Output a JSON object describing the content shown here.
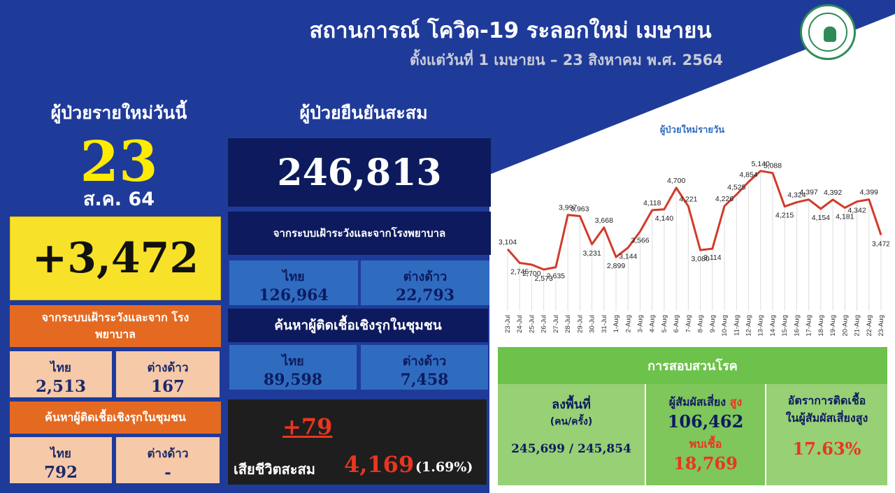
{
  "header": {
    "title": "สถานการณ์ โควิด-19 ระลอกใหม่ เมษายน",
    "subtitle": "ตั้งแต่วันที่ 1 เมษายน – 23 สิงหาคม พ.ศ. 2564"
  },
  "today": {
    "heading": "ผู้ป่วยรายใหม่วันนี้",
    "day": "23",
    "date": "ส.ค. 64",
    "new_cases": "+3,472",
    "surveillance": {
      "heading": "จากระบบเฝ้าระวังและจาก โรงพยาบาล",
      "thai_label": "ไทย",
      "thai_value": "2,513",
      "foreign_label": "ต่างด้าว",
      "foreign_value": "167"
    },
    "community": {
      "heading": "ค้นหาผู้ติดเชื้อเชิงรุกในชุมชน",
      "thai_label": "ไทย",
      "thai_value": "792",
      "foreign_label": "ต่างด้าว",
      "foreign_value": "-"
    }
  },
  "cumulative": {
    "heading": "ผู้ป่วยยืนยันสะสม",
    "total": "246,813",
    "surveillance": {
      "heading": "จากระบบเฝ้าระวังและจากโรงพยาบาล",
      "thai_label": "ไทย",
      "thai_value": "126,964",
      "foreign_label": "ต่างด้าว",
      "foreign_value": "22,793"
    },
    "community": {
      "heading": "ค้นหาผู้ติดเชื้อเชิงรุกในชุมชน",
      "thai_label": "ไทย",
      "thai_value": "89,598",
      "foreign_label": "ต่างด้าว",
      "foreign_value": "7,458"
    },
    "deaths_new": "+79",
    "deaths_label": "เสียชีวิตสะสม",
    "deaths_total": "4,169",
    "deaths_pct": "(1.69%)"
  },
  "investigation": {
    "heading": "การสอบสวนโรค",
    "field_label": "ลงพื้นที่",
    "field_unit": "(คน/ครั้ง)",
    "field_value": "245,699 / 245,854",
    "contacts_label": "ผู้สัมผัสเสี่ยง",
    "contacts_high": "สูง",
    "contacts_value": "106,462",
    "found_label": "พบเชื้อ",
    "found_value": "18,769",
    "rate_label_1": "อัตราการติดเชื้อ",
    "rate_label_2": "ในผู้สัมผัสเสี่ยงสูง",
    "rate_value": "17.63%"
  },
  "colors": {
    "navy": "#0d1b5e",
    "blue": "#1f3b9a",
    "yellow": "#f7e229",
    "orange": "#e46a22",
    "peach": "#f6c9a8",
    "green": "#6cc24a",
    "line": "#d23a2a",
    "red_text": "#e8361f"
  },
  "chart_data": {
    "type": "line",
    "title": "ผู้ป่วยใหม่รายวัน",
    "categories": [
      "23-Jul",
      "24-Jul",
      "25-Jul",
      "26-Jul",
      "27-Jul",
      "28-Jul",
      "29-Jul",
      "30-Jul",
      "31-Jul",
      "1-Aug",
      "2-Aug",
      "3-Aug",
      "4-Aug",
      "5-Aug",
      "6-Aug",
      "7-Aug",
      "8-Aug",
      "9-Aug",
      "10-Aug",
      "11-Aug",
      "12-Aug",
      "13-Aug",
      "14-Aug",
      "15-Aug",
      "16-Aug",
      "17-Aug",
      "18-Aug",
      "19-Aug",
      "20-Aug",
      "21-Aug",
      "22-Aug",
      "23-Aug"
    ],
    "values": [
      3104,
      2745,
      2700,
      2573,
      2635,
      3997,
      3963,
      3231,
      3668,
      2899,
      3144,
      3566,
      4118,
      4140,
      4700,
      4221,
      3080,
      3114,
      4226,
      4525,
      4854,
      5140,
      5088,
      4215,
      4324,
      4397,
      4154,
      4392,
      4181,
      4342,
      4399,
      3472
    ],
    "labels": [
      "3,104",
      "2,745",
      "2,700",
      "2,573",
      "2,635",
      "3,997",
      "3,963",
      "3,231",
      "3,668",
      "2,899",
      "3,144",
      "3,566",
      "4,118",
      "4,140",
      "4,700",
      "4,221",
      "3,080",
      "3,114",
      "4,226",
      "4,525",
      "4,854",
      "5,140",
      "5,088",
      "4,215",
      "4,324",
      "4,397",
      "4,154",
      "4,392",
      "4,181",
      "4,342",
      "4,399",
      "3,472"
    ],
    "grid": "vertical",
    "legend": "none"
  }
}
